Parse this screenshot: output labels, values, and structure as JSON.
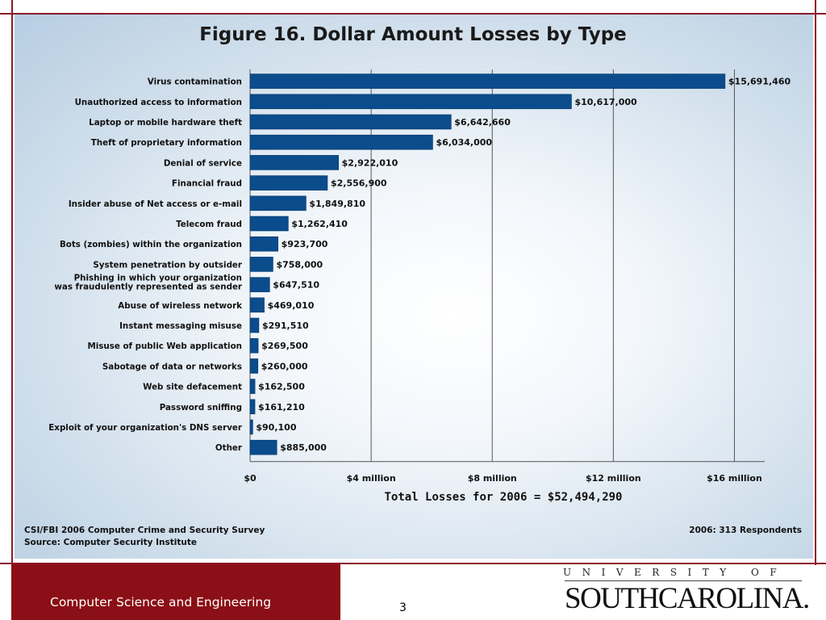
{
  "colors": {
    "bar": "#0b4c8c",
    "accent_red": "#8b0f16",
    "panel_bg": "#c8d9e8"
  },
  "figure": {
    "title": "Figure 16. Dollar Amount Losses by Type",
    "total": "Total Losses for 2006 = $52,494,290",
    "source_1": "CSI/FBI 2006 Computer Crime and Security Survey",
    "source_2": "Source: Computer Security Institute",
    "respondents": "2006: 313 Respondents"
  },
  "chart_data": {
    "type": "bar",
    "orientation": "horizontal",
    "title": "Figure 16. Dollar Amount Losses by Type",
    "categories": [
      "Virus contamination",
      "Unauthorized access to information",
      "Laptop or mobile hardware theft",
      "Theft of proprietary information",
      "Denial of service",
      "Financial fraud",
      "Insider abuse of Net access or e-mail",
      "Telecom fraud",
      "Bots (zombies) within the organization",
      "System penetration by outsider",
      "Phishing in which your organization\nwas fraudulently represented as sender",
      "Abuse of wireless network",
      "Instant messaging misuse",
      "Misuse of public Web application",
      "Sabotage of data or networks",
      "Web site defacement",
      "Password sniffing",
      "Exploit of your organization's DNS server",
      "Other"
    ],
    "values": [
      15691460,
      10617000,
      6642660,
      6034000,
      2922010,
      2556900,
      1849810,
      1262410,
      923700,
      758000,
      647510,
      469010,
      291510,
      269500,
      260000,
      162500,
      161210,
      90100,
      885000
    ],
    "value_labels": [
      "$15,691,460",
      "$10,617,000",
      "$6,642,660",
      "$6,034,000",
      "$2,922,010",
      "$2,556,900",
      "$1,849,810",
      "$1,262,410",
      "$923,700",
      "$758,000",
      "$647,510",
      "$469,010",
      "$291,510",
      "$269,500",
      "$260,000",
      "$162,500",
      "$161,210",
      "$90,100",
      "$885,000"
    ],
    "x_ticks": [
      0,
      4000000,
      8000000,
      12000000,
      16000000
    ],
    "x_tick_labels": [
      "$0",
      "$4 million",
      "$8 million",
      "$12 million",
      "$16 million"
    ],
    "xlim": [
      0,
      17000000
    ],
    "grid": true
  },
  "footer": {
    "text": "Computer Science and Engineering",
    "page": "3",
    "logo_top": "UNIVERSITY OF",
    "logo_main": "SOUTHCAROLINA."
  }
}
